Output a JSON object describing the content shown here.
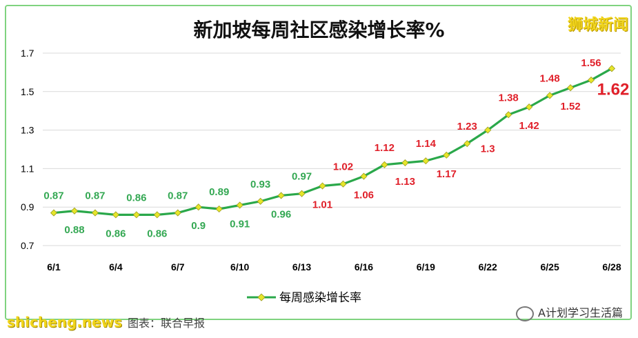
{
  "title": "新加坡每周社区感染增长率%",
  "watermark_top_right": "狮城新闻",
  "watermark_bottom_right": "A计划学习生活篇",
  "watermark_bottom_left": "shicheng.news",
  "source_text": "图表：联合早报",
  "chart_data": {
    "type": "line",
    "x": [
      "6/1",
      "6/2",
      "6/3",
      "6/4",
      "6/5",
      "6/6",
      "6/7",
      "6/8",
      "6/9",
      "6/10",
      "6/11",
      "6/12",
      "6/13",
      "6/14",
      "6/15",
      "6/16",
      "6/17",
      "6/18",
      "6/19",
      "6/20",
      "6/21",
      "6/22",
      "6/23",
      "6/24",
      "6/25",
      "6/26",
      "6/27",
      "6/28"
    ],
    "x_tick_labels": [
      "6/1",
      "6/4",
      "6/7",
      "6/10",
      "6/13",
      "6/16",
      "6/19",
      "6/22",
      "6/25",
      "6/28"
    ],
    "series": [
      {
        "name": "每周感染增长率",
        "values": [
          0.87,
          0.88,
          0.87,
          0.86,
          0.86,
          0.86,
          0.87,
          0.9,
          0.89,
          0.91,
          0.93,
          0.96,
          0.97,
          1.01,
          1.02,
          1.06,
          1.12,
          1.13,
          1.14,
          1.17,
          1.23,
          1.3,
          1.38,
          1.42,
          1.48,
          1.52,
          1.56,
          1.62
        ]
      }
    ],
    "data_labels": [
      "0.87",
      "0.88",
      "0.87",
      "0.86",
      "0.86",
      "0.86",
      "0.87",
      "0.9",
      "0.89",
      "0.91",
      "0.93",
      "0.96",
      "0.97",
      "1.01",
      "1.02",
      "1.06",
      "1.12",
      "1.13",
      "1.14",
      "1.17",
      "1.23",
      "1.3",
      "1.38",
      "1.42",
      "1.48",
      "1.52",
      "1.56",
      "1.62"
    ],
    "y_tick_labels": [
      "0.7",
      "0.9",
      "1.1",
      "1.3",
      "1.5",
      "1.7"
    ],
    "ylim": [
      0.7,
      1.7
    ],
    "grid": true,
    "legend_position": "bottom",
    "colors": {
      "line": "#2aa84a",
      "marker": "#e6e62a",
      "label_low": "#34a853",
      "label_high": "#e0202a"
    }
  }
}
